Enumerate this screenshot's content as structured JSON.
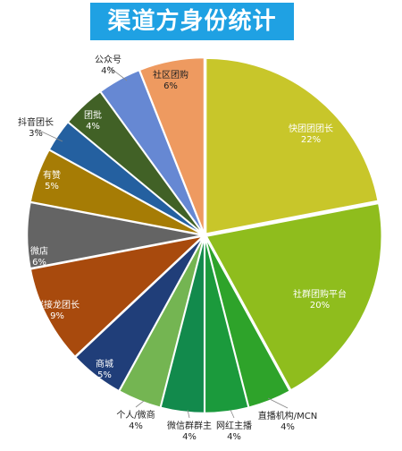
{
  "chart_data": {
    "type": "pie",
    "title": "渠道方身份统计",
    "slices": [
      {
        "label": "快团团团长",
        "value_label": "22%",
        "value": 22,
        "color": "#c8c62a"
      },
      {
        "label": "社群团购平台",
        "value_label": "20%",
        "value": 20,
        "color": "#8fbd1d"
      },
      {
        "label": "直播机构/MCN",
        "value_label": "4%",
        "value": 4,
        "color": "#2ea32a"
      },
      {
        "label": "网红主播",
        "value_label": "4%",
        "value": 4,
        "color": "#1b9a3c"
      },
      {
        "label": "微信群群主",
        "value_label": "4%",
        "value": 4,
        "color": "#128a4c"
      },
      {
        "label": "个人/微商",
        "value_label": "4%",
        "value": 4,
        "color": "#74b552"
      },
      {
        "label": "商城",
        "value_label": "5%",
        "value": 5,
        "color": "#203e79"
      },
      {
        "label": "群接龙团长",
        "value_label": "9%",
        "value": 9,
        "color": "#a84a0d"
      },
      {
        "label": "微店",
        "value_label": "6%",
        "value": 6,
        "color": "#646464"
      },
      {
        "label": "有赞",
        "value_label": "5%",
        "value": 5,
        "color": "#a67c05"
      },
      {
        "label": "抖音团长",
        "value_label": "3%",
        "value": 3,
        "color": "#2460a0"
      },
      {
        "label": "团批",
        "value_label": "4%",
        "value": 4,
        "color": "#416126"
      },
      {
        "label": "公众号",
        "value_label": "4%",
        "value": 4,
        "color": "#6688d3"
      },
      {
        "label": "社区团购",
        "value_label": "6%",
        "value": 6,
        "color": "#ee9a60"
      }
    ],
    "legend": "none"
  }
}
